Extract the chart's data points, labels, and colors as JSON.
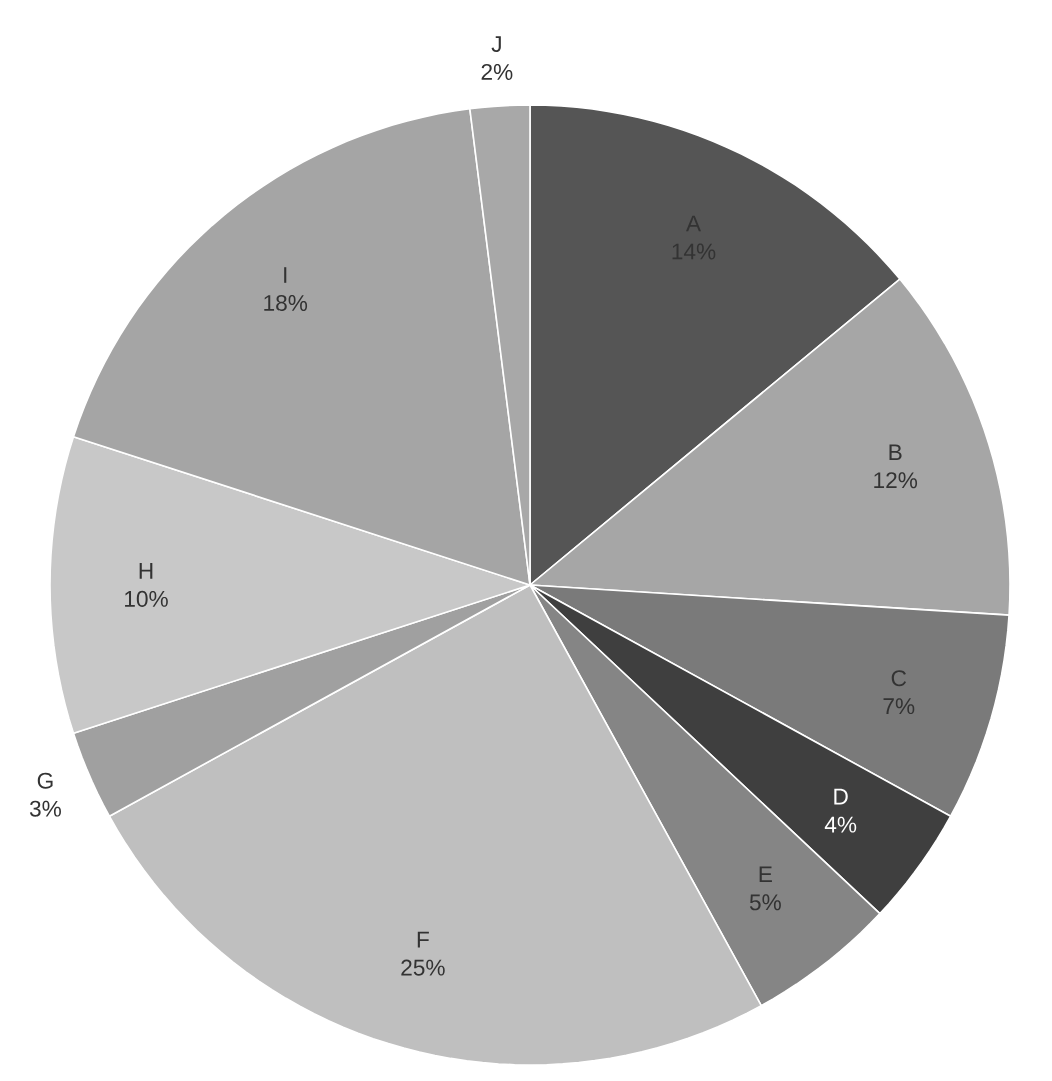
{
  "chart_data": {
    "type": "pie",
    "categories": [
      "A",
      "B",
      "C",
      "D",
      "E",
      "F",
      "G",
      "H",
      "I",
      "J"
    ],
    "values": [
      14,
      12,
      7,
      4,
      5,
      25,
      3,
      10,
      18,
      2
    ],
    "value_labels": [
      "14%",
      "12%",
      "7%",
      "4%",
      "5%",
      "25%",
      "3%",
      "10%",
      "18%",
      "2%"
    ],
    "colors": [
      "#555555",
      "#a6a6a6",
      "#7a7a7a",
      "#3f3f3f",
      "#858585",
      "#bfbfbf",
      "#a0a0a0",
      "#c8c8c8",
      "#a5a5a5",
      "#a8a8a8"
    ]
  }
}
